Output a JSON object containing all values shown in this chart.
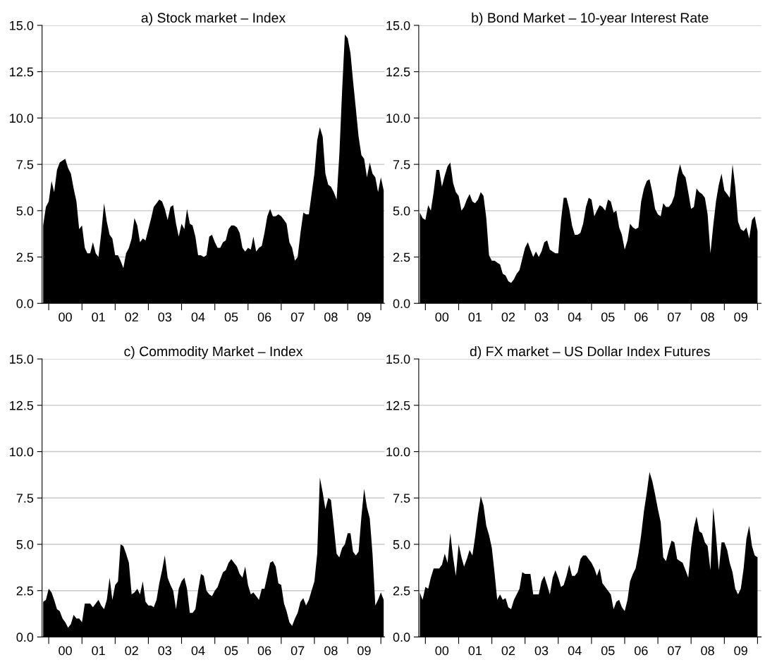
{
  "chart_data": [
    {
      "type": "area",
      "title": "a) Stock market – Index",
      "x": [
        "1999-11",
        "1999-12",
        "2000-01",
        "2000-02",
        "2000-03",
        "2000-04",
        "2000-05",
        "2000-06",
        "2000-07",
        "2000-08",
        "2000-09",
        "2000-10",
        "2000-11",
        "2000-12",
        "2001-01",
        "2001-02",
        "2001-03",
        "2001-04",
        "2001-05",
        "2001-06",
        "2001-07",
        "2001-08",
        "2001-09",
        "2001-10",
        "2001-11",
        "2001-12",
        "2002-01",
        "2002-02",
        "2002-03",
        "2002-04",
        "2002-05",
        "2002-06",
        "2002-07",
        "2002-08",
        "2002-09",
        "2002-10",
        "2002-11",
        "2002-12",
        "2003-01",
        "2003-02",
        "2003-03",
        "2003-04",
        "2003-05",
        "2003-06",
        "2003-07",
        "2003-08",
        "2003-09",
        "2003-10",
        "2003-11",
        "2003-12",
        "2004-01",
        "2004-02",
        "2004-03",
        "2004-04",
        "2004-05",
        "2004-06",
        "2004-07",
        "2004-08",
        "2004-09",
        "2004-10",
        "2004-11",
        "2004-12",
        "2005-01",
        "2005-02",
        "2005-03",
        "2005-04",
        "2005-05",
        "2005-06",
        "2005-07",
        "2005-08",
        "2005-09",
        "2005-10",
        "2005-11",
        "2005-12",
        "2006-01",
        "2006-02",
        "2006-03",
        "2006-04",
        "2006-05",
        "2006-06",
        "2006-07",
        "2006-08",
        "2006-09",
        "2006-10",
        "2006-11",
        "2006-12",
        "2007-01",
        "2007-02",
        "2007-03",
        "2007-04",
        "2007-05",
        "2007-06",
        "2007-07",
        "2007-08",
        "2007-09",
        "2007-10",
        "2007-11",
        "2007-12",
        "2008-01",
        "2008-02",
        "2008-03",
        "2008-04",
        "2008-05",
        "2008-06",
        "2008-07",
        "2008-08",
        "2008-09",
        "2008-10",
        "2008-11",
        "2008-12",
        "2009-01",
        "2009-02",
        "2009-03",
        "2009-04",
        "2009-05",
        "2009-06",
        "2009-07",
        "2009-08",
        "2009-09",
        "2009-10",
        "2009-11",
        "2009-12",
        "2010-01",
        "2010-02"
      ],
      "color": "#000000",
      "grid": "y",
      "xlim": [
        "1999-10-20",
        "2010-02-10"
      ],
      "ylim": [
        0,
        15
      ],
      "yticks": [
        {
          "value": 0,
          "label": "0.0"
        },
        {
          "value": 2.5,
          "label": "2.5"
        },
        {
          "value": 5,
          "label": "5.0"
        },
        {
          "value": 7.5,
          "label": "7.5"
        },
        {
          "value": 10,
          "label": "10.0"
        },
        {
          "value": 12.5,
          "label": "12.5"
        },
        {
          "value": 15,
          "label": "15.0"
        }
      ],
      "xticks": [
        {
          "value": "2000-01-01",
          "label": null
        },
        {
          "value": "2000-07-01",
          "label": "00"
        },
        {
          "value": "2001-01-01",
          "label": null
        },
        {
          "value": "2001-07-01",
          "label": "01"
        },
        {
          "value": "2002-01-01",
          "label": null
        },
        {
          "value": "2002-07-01",
          "label": "02"
        },
        {
          "value": "2003-01-01",
          "label": null
        },
        {
          "value": "2003-07-01",
          "label": "03"
        },
        {
          "value": "2004-01-01",
          "label": null
        },
        {
          "value": "2004-07-01",
          "label": "04"
        },
        {
          "value": "2005-01-01",
          "label": null
        },
        {
          "value": "2005-07-01",
          "label": "05"
        },
        {
          "value": "2006-01-01",
          "label": null
        },
        {
          "value": "2006-07-01",
          "label": "06"
        },
        {
          "value": "2007-01-01",
          "label": null
        },
        {
          "value": "2007-07-01",
          "label": "07"
        },
        {
          "value": "2008-01-01",
          "label": null
        },
        {
          "value": "2008-07-01",
          "label": "08"
        },
        {
          "value": "2009-01-01",
          "label": null
        },
        {
          "value": "2009-07-01",
          "label": "09"
        },
        {
          "value": "2010-01-01",
          "label": null
        }
      ],
      "values": [
        4.2,
        5.2,
        5.5,
        6.6,
        6.0,
        7.2,
        7.6,
        7.7,
        7.8,
        7.3,
        7.0,
        6.2,
        5.5,
        4.0,
        4.2,
        3.0,
        2.7,
        2.7,
        3.3,
        2.7,
        2.5,
        3.8,
        5.4,
        4.4,
        3.7,
        3.5,
        2.6,
        2.6,
        2.3,
        1.9,
        2.7,
        3.0,
        3.5,
        4.6,
        4.2,
        3.3,
        3.5,
        3.4,
        4.0,
        4.6,
        5.2,
        5.4,
        5.6,
        5.5,
        5.1,
        4.5,
        5.2,
        5.3,
        4.3,
        3.6,
        4.3,
        4.0,
        5.1,
        4.3,
        4.2,
        3.6,
        2.6,
        2.6,
        2.5,
        2.6,
        3.6,
        3.7,
        3.3,
        3.0,
        3.0,
        3.3,
        3.4,
        4.0,
        4.2,
        4.2,
        4.1,
        3.8,
        3.0,
        2.8,
        3.0,
        2.9,
        3.6,
        2.8,
        3.0,
        3.1,
        3.8,
        4.7,
        5.1,
        4.7,
        4.7,
        4.8,
        4.7,
        4.5,
        4.3,
        3.3,
        3.0,
        2.3,
        2.5,
        3.8,
        4.9,
        4.8,
        4.8,
        5.9,
        7.0,
        8.8,
        9.5,
        9.0,
        7.0,
        6.4,
        6.3,
        6.0,
        5.6,
        8.0,
        11.5,
        14.5,
        14.3,
        13.5,
        12.0,
        10.5,
        9.0,
        8.0,
        7.8,
        6.8,
        7.6,
        7.0,
        6.8,
        6.0,
        6.8,
        6.1
      ]
    },
    {
      "type": "area",
      "title": "b) Bond Market – 10-year Interest Rate",
      "x": [
        "1999-11",
        "1999-12",
        "2000-01",
        "2000-02",
        "2000-03",
        "2000-04",
        "2000-05",
        "2000-06",
        "2000-07",
        "2000-08",
        "2000-09",
        "2000-10",
        "2000-11",
        "2000-12",
        "2001-01",
        "2001-02",
        "2001-03",
        "2001-04",
        "2001-05",
        "2001-06",
        "2001-07",
        "2001-08",
        "2001-09",
        "2001-10",
        "2001-11",
        "2001-12",
        "2002-01",
        "2002-02",
        "2002-03",
        "2002-04",
        "2002-05",
        "2002-06",
        "2002-07",
        "2002-08",
        "2002-09",
        "2002-10",
        "2002-11",
        "2002-12",
        "2003-01",
        "2003-02",
        "2003-03",
        "2003-04",
        "2003-05",
        "2003-06",
        "2003-07",
        "2003-08",
        "2003-09",
        "2003-10",
        "2003-11",
        "2003-12",
        "2004-01",
        "2004-02",
        "2004-03",
        "2004-04",
        "2004-05",
        "2004-06",
        "2004-07",
        "2004-08",
        "2004-09",
        "2004-10",
        "2004-11",
        "2004-12",
        "2005-01",
        "2005-02",
        "2005-03",
        "2005-04",
        "2005-05",
        "2005-06",
        "2005-07",
        "2005-08",
        "2005-09",
        "2005-10",
        "2005-11",
        "2005-12",
        "2006-01",
        "2006-02",
        "2006-03",
        "2006-04",
        "2006-05",
        "2006-06",
        "2006-07",
        "2006-08",
        "2006-09",
        "2006-10",
        "2006-11",
        "2006-12",
        "2007-01",
        "2007-02",
        "2007-03",
        "2007-04",
        "2007-05",
        "2007-06",
        "2007-07",
        "2007-08",
        "2007-09",
        "2007-10",
        "2007-11",
        "2007-12",
        "2008-01",
        "2008-02",
        "2008-03",
        "2008-04",
        "2008-05",
        "2008-06",
        "2008-07",
        "2008-08",
        "2008-09",
        "2008-10",
        "2008-11",
        "2008-12",
        "2009-01",
        "2009-02",
        "2009-03",
        "2009-04",
        "2009-05",
        "2009-06",
        "2009-07",
        "2009-08",
        "2009-09",
        "2009-10",
        "2009-11",
        "2009-12",
        "2010-01"
      ],
      "color": "#000000",
      "grid": "y",
      "xlim": [
        "1999-10-20",
        "2010-02-10"
      ],
      "ylim": [
        0,
        15
      ],
      "yticks": [
        {
          "value": 0,
          "label": "0.0"
        },
        {
          "value": 2.5,
          "label": "2.5"
        },
        {
          "value": 5,
          "label": "5.0"
        },
        {
          "value": 7.5,
          "label": "7.5"
        },
        {
          "value": 10,
          "label": "10.0"
        },
        {
          "value": 12.5,
          "label": "12.5"
        },
        {
          "value": 15,
          "label": "15.0"
        }
      ],
      "xticks": [
        {
          "value": "2000-01-01",
          "label": null
        },
        {
          "value": "2000-07-01",
          "label": "00"
        },
        {
          "value": "2001-01-01",
          "label": null
        },
        {
          "value": "2001-07-01",
          "label": "01"
        },
        {
          "value": "2002-01-01",
          "label": null
        },
        {
          "value": "2002-07-01",
          "label": "02"
        },
        {
          "value": "2003-01-01",
          "label": null
        },
        {
          "value": "2003-07-01",
          "label": "03"
        },
        {
          "value": "2004-01-01",
          "label": null
        },
        {
          "value": "2004-07-01",
          "label": "04"
        },
        {
          "value": "2005-01-01",
          "label": null
        },
        {
          "value": "2005-07-01",
          "label": "05"
        },
        {
          "value": "2006-01-01",
          "label": null
        },
        {
          "value": "2006-07-01",
          "label": "06"
        },
        {
          "value": "2007-01-01",
          "label": null
        },
        {
          "value": "2007-07-01",
          "label": "07"
        },
        {
          "value": "2008-01-01",
          "label": null
        },
        {
          "value": "2008-07-01",
          "label": "08"
        },
        {
          "value": "2009-01-01",
          "label": null
        },
        {
          "value": "2009-07-01",
          "label": "09"
        },
        {
          "value": "2010-01-01",
          "label": null
        }
      ],
      "values": [
        4.9,
        4.6,
        4.5,
        5.3,
        5.0,
        6.0,
        7.2,
        7.2,
        6.3,
        6.9,
        7.4,
        7.6,
        6.5,
        6.0,
        5.8,
        5.0,
        5.2,
        5.6,
        5.9,
        5.5,
        5.4,
        5.6,
        6.0,
        5.8,
        4.6,
        2.6,
        2.3,
        2.3,
        2.2,
        2.1,
        1.6,
        1.5,
        1.2,
        1.1,
        1.3,
        1.6,
        1.8,
        2.4,
        3.0,
        3.3,
        2.9,
        2.5,
        2.8,
        2.5,
        2.8,
        3.3,
        3.4,
        2.9,
        2.8,
        2.7,
        2.7,
        4.5,
        5.7,
        5.7,
        5.1,
        4.2,
        3.7,
        3.7,
        3.8,
        4.3,
        5.2,
        5.7,
        5.6,
        4.7,
        5.0,
        5.3,
        5.2,
        5.0,
        5.6,
        5.5,
        4.9,
        5.0,
        4.1,
        3.7,
        2.9,
        3.4,
        4.3,
        4.1,
        4.0,
        4.1,
        5.5,
        6.2,
        6.6,
        6.7,
        6.0,
        5.1,
        4.8,
        4.7,
        5.4,
        5.2,
        5.2,
        5.4,
        5.8,
        6.8,
        7.5,
        7.0,
        6.8,
        6.0,
        5.1,
        5.2,
        6.2,
        6.0,
        5.9,
        5.7,
        4.8,
        2.7,
        4.2,
        5.5,
        6.4,
        7.0,
        6.1,
        5.9,
        5.7,
        7.5,
        6.3,
        4.4,
        4.0,
        3.9,
        4.1,
        3.5,
        4.5,
        4.7,
        3.9
      ]
    },
    {
      "type": "area",
      "title": "c) Commodity Market – Index",
      "x": [
        "1999-11",
        "1999-12",
        "2000-01",
        "2000-02",
        "2000-03",
        "2000-04",
        "2000-05",
        "2000-06",
        "2000-07",
        "2000-08",
        "2000-09",
        "2000-10",
        "2000-11",
        "2000-12",
        "2001-01",
        "2001-02",
        "2001-03",
        "2001-04",
        "2001-05",
        "2001-06",
        "2001-07",
        "2001-08",
        "2001-09",
        "2001-10",
        "2001-11",
        "2001-12",
        "2002-01",
        "2002-02",
        "2002-03",
        "2002-04",
        "2002-05",
        "2002-06",
        "2002-07",
        "2002-08",
        "2002-09",
        "2002-10",
        "2002-11",
        "2002-12",
        "2003-01",
        "2003-02",
        "2003-03",
        "2003-04",
        "2003-05",
        "2003-06",
        "2003-07",
        "2003-08",
        "2003-09",
        "2003-10",
        "2003-11",
        "2003-12",
        "2004-01",
        "2004-02",
        "2004-03",
        "2004-04",
        "2004-05",
        "2004-06",
        "2004-07",
        "2004-08",
        "2004-09",
        "2004-10",
        "2004-11",
        "2004-12",
        "2005-01",
        "2005-02",
        "2005-03",
        "2005-04",
        "2005-05",
        "2005-06",
        "2005-07",
        "2005-08",
        "2005-09",
        "2005-10",
        "2005-11",
        "2005-12",
        "2006-01",
        "2006-02",
        "2006-03",
        "2006-04",
        "2006-05",
        "2006-06",
        "2006-07",
        "2006-08",
        "2006-09",
        "2006-10",
        "2006-11",
        "2006-12",
        "2007-01",
        "2007-02",
        "2007-03",
        "2007-04",
        "2007-05",
        "2007-06",
        "2007-07",
        "2007-08",
        "2007-09",
        "2007-10",
        "2007-11",
        "2007-12",
        "2008-01",
        "2008-02",
        "2008-03",
        "2008-04",
        "2008-05",
        "2008-06",
        "2008-07",
        "2008-08",
        "2008-09",
        "2008-10",
        "2008-11",
        "2008-12",
        "2009-01",
        "2009-02",
        "2009-03",
        "2009-04",
        "2009-05",
        "2009-06",
        "2009-07",
        "2009-08",
        "2009-09",
        "2009-10",
        "2009-11",
        "2009-12",
        "2010-01",
        "2010-02"
      ],
      "color": "#000000",
      "grid": "y",
      "xlim": [
        "1999-10-20",
        "2010-02-10"
      ],
      "ylim": [
        0,
        15
      ],
      "yticks": [
        {
          "value": 0,
          "label": "0.0"
        },
        {
          "value": 2.5,
          "label": "2.5"
        },
        {
          "value": 5,
          "label": "5.0"
        },
        {
          "value": 7.5,
          "label": "7.5"
        },
        {
          "value": 10,
          "label": "10.0"
        },
        {
          "value": 12.5,
          "label": "12.5"
        },
        {
          "value": 15,
          "label": "15.0"
        }
      ],
      "xticks": [
        {
          "value": "2000-01-01",
          "label": null
        },
        {
          "value": "2000-07-01",
          "label": "00"
        },
        {
          "value": "2001-01-01",
          "label": null
        },
        {
          "value": "2001-07-01",
          "label": "01"
        },
        {
          "value": "2002-01-01",
          "label": null
        },
        {
          "value": "2002-07-01",
          "label": "02"
        },
        {
          "value": "2003-01-01",
          "label": null
        },
        {
          "value": "2003-07-01",
          "label": "03"
        },
        {
          "value": "2004-01-01",
          "label": null
        },
        {
          "value": "2004-07-01",
          "label": "04"
        },
        {
          "value": "2005-01-01",
          "label": null
        },
        {
          "value": "2005-07-01",
          "label": "05"
        },
        {
          "value": "2006-01-01",
          "label": null
        },
        {
          "value": "2006-07-01",
          "label": "06"
        },
        {
          "value": "2007-01-01",
          "label": null
        },
        {
          "value": "2007-07-01",
          "label": "07"
        },
        {
          "value": "2008-01-01",
          "label": null
        },
        {
          "value": "2008-07-01",
          "label": "08"
        },
        {
          "value": "2009-01-01",
          "label": null
        },
        {
          "value": "2009-07-01",
          "label": "09"
        },
        {
          "value": "2010-01-01",
          "label": null
        }
      ],
      "values": [
        1.9,
        2.0,
        2.6,
        2.4,
        2.0,
        1.5,
        1.4,
        1.0,
        0.8,
        0.5,
        0.7,
        1.2,
        1.0,
        1.0,
        0.8,
        1.8,
        1.8,
        1.8,
        1.6,
        1.8,
        2.0,
        1.7,
        1.5,
        2.0,
        3.2,
        2.0,
        2.8,
        3.0,
        5.0,
        4.9,
        4.5,
        4.0,
        2.3,
        2.4,
        2.6,
        2.3,
        3.0,
        1.9,
        1.7,
        1.7,
        1.6,
        2.0,
        2.9,
        3.6,
        4.4,
        3.2,
        2.8,
        2.5,
        1.5,
        2.6,
        3.0,
        3.2,
        2.6,
        1.3,
        1.3,
        1.5,
        2.5,
        3.4,
        3.3,
        2.5,
        2.3,
        2.2,
        2.5,
        2.7,
        3.1,
        3.5,
        3.6,
        4.0,
        4.2,
        4.0,
        3.8,
        3.4,
        3.2,
        3.8,
        2.8,
        2.3,
        2.4,
        2.2,
        2.0,
        2.6,
        2.6,
        3.3,
        4.0,
        4.1,
        3.8,
        2.9,
        2.8,
        1.8,
        1.4,
        0.8,
        0.6,
        1.0,
        1.3,
        1.9,
        2.1,
        1.7,
        2.0,
        2.5,
        3.0,
        4.5,
        8.6,
        7.8,
        6.9,
        7.5,
        7.4,
        6.0,
        4.5,
        4.3,
        4.8,
        5.0,
        5.6,
        5.6,
        4.6,
        4.4,
        4.6,
        6.5,
        8.0,
        7.0,
        6.4,
        4.5,
        1.7,
        2.0,
        2.4,
        2.0
      ]
    },
    {
      "type": "area",
      "title": "d) FX market – US Dollar Index Futures",
      "x": [
        "1999-11",
        "1999-12",
        "2000-01",
        "2000-02",
        "2000-03",
        "2000-04",
        "2000-05",
        "2000-06",
        "2000-07",
        "2000-08",
        "2000-09",
        "2000-10",
        "2000-11",
        "2000-12",
        "2001-01",
        "2001-02",
        "2001-03",
        "2001-04",
        "2001-05",
        "2001-06",
        "2001-07",
        "2001-08",
        "2001-09",
        "2001-10",
        "2001-11",
        "2001-12",
        "2002-01",
        "2002-02",
        "2002-03",
        "2002-04",
        "2002-05",
        "2002-06",
        "2002-07",
        "2002-08",
        "2002-09",
        "2002-10",
        "2002-11",
        "2002-12",
        "2003-01",
        "2003-02",
        "2003-03",
        "2003-04",
        "2003-05",
        "2003-06",
        "2003-07",
        "2003-08",
        "2003-09",
        "2003-10",
        "2003-11",
        "2003-12",
        "2004-01",
        "2004-02",
        "2004-03",
        "2004-04",
        "2004-05",
        "2004-06",
        "2004-07",
        "2004-08",
        "2004-09",
        "2004-10",
        "2004-11",
        "2004-12",
        "2005-01",
        "2005-02",
        "2005-03",
        "2005-04",
        "2005-05",
        "2005-06",
        "2005-07",
        "2005-08",
        "2005-09",
        "2005-10",
        "2005-11",
        "2005-12",
        "2006-01",
        "2006-02",
        "2006-03",
        "2006-04",
        "2006-05",
        "2006-06",
        "2006-07",
        "2006-08",
        "2006-09",
        "2006-10",
        "2006-11",
        "2006-12",
        "2007-01",
        "2007-02",
        "2007-03",
        "2007-04",
        "2007-05",
        "2007-06",
        "2007-07",
        "2007-08",
        "2007-09",
        "2007-10",
        "2007-11",
        "2007-12",
        "2008-01",
        "2008-02",
        "2008-03",
        "2008-04",
        "2008-05",
        "2008-06",
        "2008-07",
        "2008-08",
        "2008-09",
        "2008-10",
        "2008-11",
        "2008-12",
        "2009-01",
        "2009-02",
        "2009-03",
        "2009-04",
        "2009-05",
        "2009-06",
        "2009-07",
        "2009-08",
        "2009-09",
        "2009-10",
        "2009-11",
        "2009-12",
        "2010-01"
      ],
      "color": "#000000",
      "grid": "y",
      "xlim": [
        "1999-10-20",
        "2010-02-10"
      ],
      "ylim": [
        0,
        15
      ],
      "yticks": [
        {
          "value": 0,
          "label": "0.0"
        },
        {
          "value": 2.5,
          "label": "2.5"
        },
        {
          "value": 5,
          "label": "5.0"
        },
        {
          "value": 7.5,
          "label": "7.5"
        },
        {
          "value": 10,
          "label": "10.0"
        },
        {
          "value": 12.5,
          "label": "12.5"
        },
        {
          "value": 15,
          "label": "15.0"
        }
      ],
      "xticks": [
        {
          "value": "2000-01-01",
          "label": null
        },
        {
          "value": "2000-07-01",
          "label": "00"
        },
        {
          "value": "2001-01-01",
          "label": null
        },
        {
          "value": "2001-07-01",
          "label": "01"
        },
        {
          "value": "2002-01-01",
          "label": null
        },
        {
          "value": "2002-07-01",
          "label": "02"
        },
        {
          "value": "2003-01-01",
          "label": null
        },
        {
          "value": "2003-07-01",
          "label": "03"
        },
        {
          "value": "2004-01-01",
          "label": null
        },
        {
          "value": "2004-07-01",
          "label": "04"
        },
        {
          "value": "2005-01-01",
          "label": null
        },
        {
          "value": "2005-07-01",
          "label": "05"
        },
        {
          "value": "2006-01-01",
          "label": null
        },
        {
          "value": "2006-07-01",
          "label": "06"
        },
        {
          "value": "2007-01-01",
          "label": null
        },
        {
          "value": "2007-07-01",
          "label": "07"
        },
        {
          "value": "2008-01-01",
          "label": null
        },
        {
          "value": "2008-07-01",
          "label": "08"
        },
        {
          "value": "2009-01-01",
          "label": null
        },
        {
          "value": "2009-07-01",
          "label": "09"
        },
        {
          "value": "2010-01-01",
          "label": null
        }
      ],
      "values": [
        2.4,
        2.0,
        2.7,
        2.6,
        3.2,
        3.7,
        3.7,
        3.7,
        3.9,
        4.5,
        4.0,
        5.6,
        4.3,
        3.3,
        5.0,
        4.3,
        3.8,
        4.2,
        4.7,
        4.4,
        5.4,
        6.6,
        7.6,
        7.1,
        6.0,
        5.5,
        4.8,
        3.4,
        2.0,
        2.3,
        2.0,
        2.1,
        1.6,
        1.5,
        2.0,
        2.3,
        2.6,
        3.5,
        3.4,
        3.4,
        3.4,
        2.3,
        2.3,
        2.3,
        3.0,
        3.3,
        2.8,
        2.3,
        3.2,
        3.6,
        3.2,
        2.7,
        2.8,
        3.3,
        3.9,
        3.3,
        3.3,
        3.5,
        4.2,
        4.4,
        4.4,
        4.2,
        4.0,
        3.7,
        3.3,
        3.7,
        2.9,
        2.7,
        2.5,
        2.3,
        1.5,
        1.9,
        2.0,
        1.6,
        1.4,
        2.0,
        3.0,
        3.4,
        3.7,
        4.5,
        5.5,
        6.8,
        7.8,
        8.9,
        8.4,
        7.7,
        6.9,
        6.2,
        4.3,
        4.1,
        4.7,
        5.2,
        5.1,
        4.2,
        4.1,
        4.0,
        3.6,
        3.2,
        4.8,
        5.9,
        6.5,
        5.7,
        5.6,
        5.1,
        4.9,
        3.6,
        7.0,
        5.5,
        3.6,
        5.1,
        5.1,
        4.7,
        4.0,
        3.5,
        2.6,
        2.3,
        2.6,
        3.7,
        5.3,
        6.0,
        4.9,
        4.4,
        4.3
      ]
    }
  ]
}
